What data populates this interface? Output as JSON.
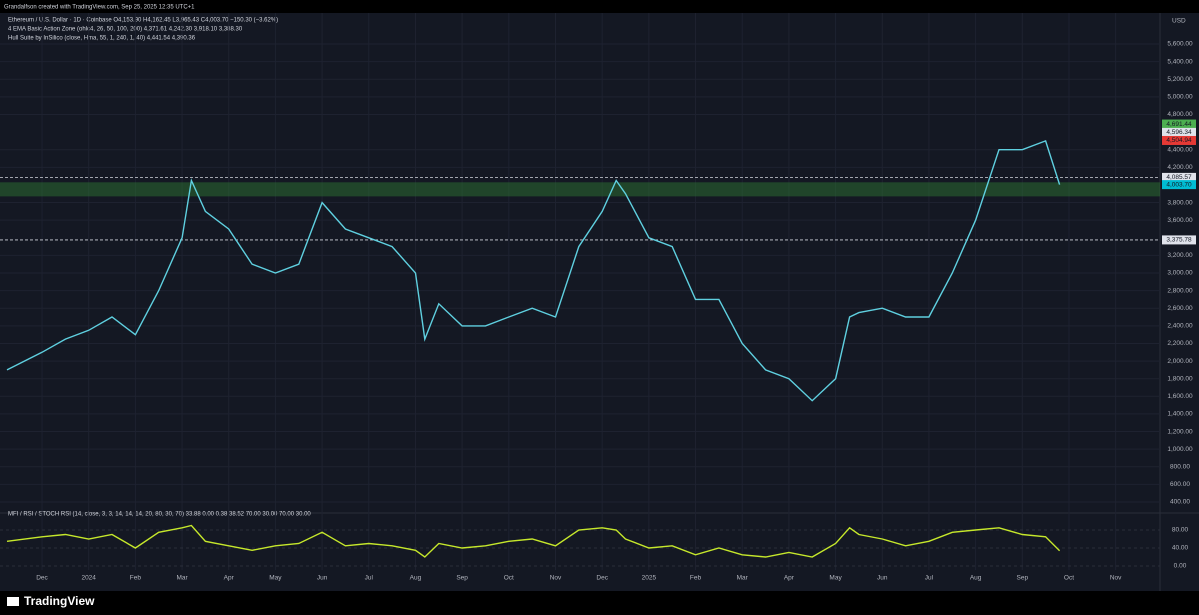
{
  "attribution": "Grandalfson created with TradingView.com, Sep 25, 2025 12:35 UTC+1",
  "brand": "TradingView",
  "chart_data": [
    {
      "type": "line",
      "title": "Ethereum / U.S. Dollar · 1D · Coinbase  O4,153.90 H4,162.45 L3,965.43 C4,003.70 −150.30 (−3.62%)",
      "indicators": [
        "4 EMA Basic Action Zone (ohlc4, 26, 50, 100, 200)  4,371.61  4,242.30  3,918.10  3,388.30",
        "Hull Suite by InSilico (close, Hma, 55, 1, 240, 1, 40)  4,441.54  4,390.36"
      ],
      "currency": "USD",
      "color": "#5fd0e0",
      "x": [
        -0.75,
        0,
        0.5,
        1,
        1.5,
        2,
        2.5,
        3,
        3.2,
        3.5,
        4,
        4.5,
        5,
        5.5,
        6,
        6.5,
        7,
        7.5,
        8,
        8.2,
        8.5,
        9,
        9.5,
        10,
        10.5,
        11,
        11.5,
        12,
        12.3,
        12.5,
        13,
        13.5,
        14,
        14.5,
        15,
        15.5,
        16,
        16.5,
        17,
        17.3,
        17.5,
        18,
        18.5,
        19,
        19.5,
        20,
        20.5,
        21,
        21.5,
        21.8
      ],
      "values": [
        1900,
        2100,
        2250,
        2350,
        2500,
        2300,
        2800,
        3400,
        4050,
        3700,
        3500,
        3100,
        3000,
        3100,
        3800,
        3500,
        3400,
        3300,
        3000,
        2250,
        2650,
        2400,
        2400,
        2500,
        2600,
        2500,
        3300,
        3700,
        4050,
        3900,
        3400,
        3300,
        2700,
        2700,
        2200,
        1900,
        1800,
        1550,
        1800,
        2500,
        2550,
        2600,
        2500,
        2500,
        3000,
        3600,
        4400,
        4400,
        4500,
        4004
      ],
      "xlim": [
        -0.9,
        23.95
      ],
      "xticks": [
        {
          "value": 0,
          "label": "Dec"
        },
        {
          "value": 1,
          "label": "2024"
        },
        {
          "value": 2,
          "label": "Feb"
        },
        {
          "value": 3,
          "label": "Mar"
        },
        {
          "value": 4,
          "label": "Apr"
        },
        {
          "value": 5,
          "label": "May"
        },
        {
          "value": 6,
          "label": "Jun"
        },
        {
          "value": 7,
          "label": "Jul"
        },
        {
          "value": 8,
          "label": "Aug"
        },
        {
          "value": 9,
          "label": "Sep"
        },
        {
          "value": 10,
          "label": "Oct"
        },
        {
          "value": 11,
          "label": "Nov"
        },
        {
          "value": 12,
          "label": "Dec"
        },
        {
          "value": 13,
          "label": "2025"
        },
        {
          "value": 14,
          "label": "Feb"
        },
        {
          "value": 15,
          "label": "Mar"
        },
        {
          "value": 16,
          "label": "Apr"
        },
        {
          "value": 17,
          "label": "May"
        },
        {
          "value": 18,
          "label": "Jun"
        },
        {
          "value": 19,
          "label": "Jul"
        },
        {
          "value": 20,
          "label": "Aug"
        },
        {
          "value": 21,
          "label": "Sep"
        },
        {
          "value": 22,
          "label": "Oct"
        },
        {
          "value": 23,
          "label": "Nov"
        }
      ],
      "ylim": [
        300,
        6000
      ],
      "yticks": [
        {
          "value": 5600,
          "label": "5,600.00"
        },
        {
          "value": 5400,
          "label": "5,400.00"
        },
        {
          "value": 5200,
          "label": "5,200.00"
        },
        {
          "value": 5000,
          "label": "5,000.00"
        },
        {
          "value": 4800,
          "label": "4,800.00"
        },
        {
          "value": 4400,
          "label": "4,400.00"
        },
        {
          "value": 4200,
          "label": "4,200.00"
        },
        {
          "value": 3800,
          "label": "3,800.00"
        },
        {
          "value": 3600,
          "label": "3,600.00"
        },
        {
          "value": 3200,
          "label": "3,200.00"
        },
        {
          "value": 3000,
          "label": "3,000.00"
        },
        {
          "value": 2800,
          "label": "2,800.00"
        },
        {
          "value": 2600,
          "label": "2,600.00"
        },
        {
          "value": 2400,
          "label": "2,400.00"
        },
        {
          "value": 2200,
          "label": "2,200.00"
        },
        {
          "value": 2000,
          "label": "2,000.00"
        },
        {
          "value": 1800,
          "label": "1,800.00"
        },
        {
          "value": 1600,
          "label": "1,600.00"
        },
        {
          "value": 1400,
          "label": "1,400.00"
        },
        {
          "value": 1200,
          "label": "1,200.00"
        },
        {
          "value": 1000,
          "label": "1,000.00"
        },
        {
          "value": 800,
          "label": "800.00"
        },
        {
          "value": 600,
          "label": "600.00"
        },
        {
          "value": 400,
          "label": "400.00"
        }
      ],
      "zone": [
        3870,
        4030
      ],
      "levels": [
        {
          "value": 4085.57,
          "label": "4,085.57"
        },
        {
          "value": 3375.78,
          "label": "3,375.78"
        }
      ],
      "price_labels": [
        {
          "value": 4691.44,
          "label": "4,691.44",
          "color": "#4caf50"
        },
        {
          "value": 4596.34,
          "label": "4,596.34",
          "color": "#e0e3eb"
        },
        {
          "value": 4504.94,
          "label": "4,504.94",
          "color": "#e53935"
        },
        {
          "value": 4003.7,
          "label": "4,003.70",
          "color": "#00bcd4"
        }
      ],
      "grid": true
    },
    {
      "type": "line",
      "title": "MFI / RSI / STOCH RSI (14, close, 3, 3, 14, 14, 14, 20, 80, 30, 70)  33.88  0.00  0.38  38.52  70.00  30.00  70.00  30.00",
      "color": "#c6e82b",
      "values": [
        55,
        65,
        70,
        60,
        70,
        40,
        75,
        85,
        90,
        55,
        45,
        35,
        45,
        50,
        75,
        45,
        50,
        45,
        35,
        20,
        50,
        40,
        45,
        55,
        60,
        45,
        80,
        85,
        80,
        60,
        40,
        45,
        25,
        40,
        25,
        20,
        30,
        20,
        50,
        85,
        70,
        60,
        45,
        55,
        75,
        80,
        85,
        70,
        65,
        34
      ],
      "ylim": [
        -10,
        110
      ],
      "yticks": [
        {
          "value": 80,
          "label": "80.00"
        },
        {
          "value": 40,
          "label": "40.00"
        },
        {
          "value": 0,
          "label": "0.00"
        }
      ]
    }
  ]
}
